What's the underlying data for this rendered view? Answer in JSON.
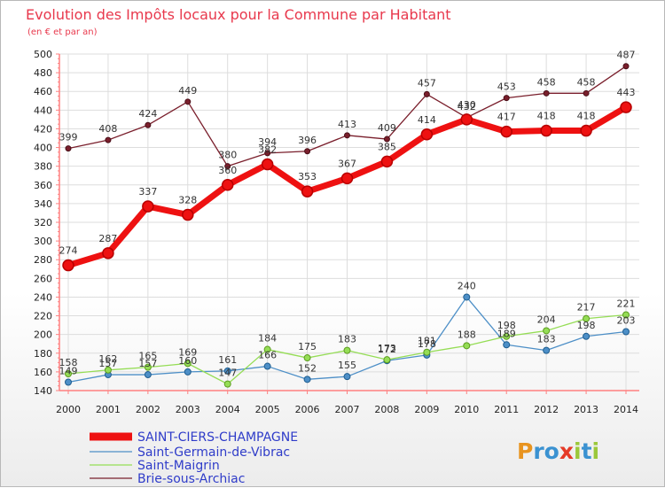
{
  "chart_data": {
    "type": "line",
    "title": "Evolution des Impôts locaux pour la Commune par Habitant",
    "subtitle": "(en € et par an)",
    "categories": [
      "2000",
      "2001",
      "2002",
      "2003",
      "2004",
      "2005",
      "2006",
      "2007",
      "2008",
      "2009",
      "2010",
      "2011",
      "2012",
      "2013",
      "2014"
    ],
    "ylim": [
      140,
      500
    ],
    "yticks": [
      140,
      160,
      180,
      200,
      220,
      240,
      260,
      280,
      300,
      320,
      340,
      360,
      380,
      400,
      420,
      440,
      460,
      480,
      500
    ],
    "grid": true,
    "series": [
      {
        "name": "SAINT-CIERS-CHAMPAGNE",
        "color": "#ee1111",
        "values": [
          274,
          287,
          337,
          328,
          360,
          382,
          353,
          367,
          385,
          414,
          430,
          417,
          418,
          418,
          443
        ]
      },
      {
        "name": "Saint-Germain-de-Vibrac",
        "color": "#4d8fc7",
        "values": [
          149,
          157,
          157,
          160,
          161,
          166,
          152,
          155,
          172,
          178,
          240,
          189,
          183,
          198,
          203
        ]
      },
      {
        "name": "Saint-Maigrin",
        "color": "#95dd55",
        "values": [
          158,
          162,
          165,
          169,
          147,
          184,
          175,
          183,
          173,
          181,
          188,
          198,
          204,
          217,
          221
        ]
      },
      {
        "name": "Brie-sous-Archiac",
        "color": "#7a1f2c",
        "values": [
          399,
          408,
          424,
          449,
          380,
          394,
          396,
          413,
          409,
          457,
          432,
          453,
          458,
          458,
          487
        ]
      }
    ]
  },
  "logo": {
    "text": "Proxiti",
    "colors": [
      "#e89420",
      "#3b92d1",
      "#e53a27",
      "#9bc83a"
    ]
  }
}
